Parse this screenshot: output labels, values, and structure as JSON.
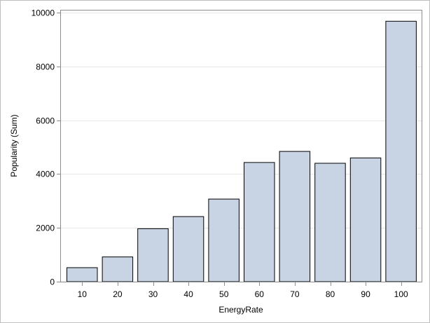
{
  "chart_data": {
    "type": "bar",
    "title": "",
    "xlabel": "EnergyRate",
    "ylabel": "Popularity (Sum)",
    "categories": [
      "10",
      "20",
      "30",
      "40",
      "50",
      "60",
      "70",
      "80",
      "90",
      "100"
    ],
    "values": [
      520,
      920,
      1970,
      2420,
      3070,
      4430,
      4840,
      4400,
      4600,
      9680
    ],
    "ylim": [
      0,
      10000
    ],
    "yticks": [
      0,
      2000,
      4000,
      6000,
      8000,
      10000
    ],
    "ytick_labels": [
      "0",
      "2000",
      "4000",
      "6000",
      "8000",
      "10000"
    ],
    "grid": "horizontal",
    "legend": "none",
    "bar_fill": "#c8d4e3",
    "bar_stroke": "#000000",
    "grid_color": "#e6e6e6",
    "axis_color": "#8c8c8c"
  }
}
